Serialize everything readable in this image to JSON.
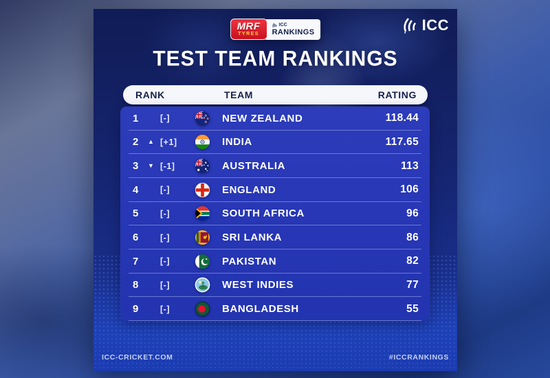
{
  "branding": {
    "mrf_line1": "MRF",
    "mrf_line2": "TYRES",
    "icc_small": "ICC",
    "rankings_label": "RANKINGS",
    "icc_logo_text": "ICC"
  },
  "title": "TEST TEAM RANKINGS",
  "table": {
    "headers": {
      "rank": "RANK",
      "team": "TEAM",
      "rating": "RATING"
    },
    "rows": [
      {
        "rank": "1",
        "direction": "none",
        "movement": "[-]",
        "flag": "new-zealand",
        "team": "NEW ZEALAND",
        "rating": "118.44"
      },
      {
        "rank": "2",
        "direction": "up",
        "movement": "[+1]",
        "flag": "india",
        "team": "INDIA",
        "rating": "117.65"
      },
      {
        "rank": "3",
        "direction": "down",
        "movement": "[-1]",
        "flag": "australia",
        "team": "AUSTRALIA",
        "rating": "113"
      },
      {
        "rank": "4",
        "direction": "none",
        "movement": "[-]",
        "flag": "england",
        "team": "ENGLAND",
        "rating": "106"
      },
      {
        "rank": "5",
        "direction": "none",
        "movement": "[-]",
        "flag": "south-africa",
        "team": "SOUTH AFRICA",
        "rating": "96"
      },
      {
        "rank": "6",
        "direction": "none",
        "movement": "[-]",
        "flag": "sri-lanka",
        "team": "SRI LANKA",
        "rating": "86"
      },
      {
        "rank": "7",
        "direction": "none",
        "movement": "[-]",
        "flag": "pakistan",
        "team": "PAKISTAN",
        "rating": "82"
      },
      {
        "rank": "8",
        "direction": "none",
        "movement": "[-]",
        "flag": "west-indies",
        "team": "WEST INDIES",
        "rating": "77"
      },
      {
        "rank": "9",
        "direction": "none",
        "movement": "[-]",
        "flag": "bangladesh",
        "team": "BANGLADESH",
        "rating": "55"
      }
    ]
  },
  "footer": {
    "left": "ICC-CRICKET.COM",
    "right": "#ICCRANKINGS"
  },
  "colors": {
    "card_navy": "#15246E",
    "table_blue": "#2A3AB8",
    "header_pill_bg": "#F5F7FB",
    "header_pill_text": "#16204A",
    "mrf_red": "#D6141F",
    "text_white": "#FFFFFF"
  }
}
